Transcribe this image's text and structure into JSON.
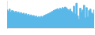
{
  "chart_data": {
    "type": "area",
    "line_style": "step",
    "categories": [
      null,
      null,
      null,
      null,
      null,
      null,
      null,
      null,
      null,
      null,
      null,
      null,
      null,
      null,
      null,
      null,
      null,
      null,
      null,
      null,
      null,
      null,
      null,
      null,
      null,
      null,
      null,
      null,
      null,
      null,
      null,
      null,
      null,
      null,
      null,
      null,
      null,
      null,
      null,
      null,
      null,
      null,
      null,
      null,
      null,
      null,
      null,
      null,
      null,
      null,
      null,
      null,
      null,
      null,
      null,
      null,
      null,
      null,
      null,
      null,
      null,
      null,
      null,
      null,
      null,
      null,
      null,
      null,
      null,
      null
    ],
    "values": [
      62,
      58,
      65,
      55,
      60,
      58,
      54,
      57,
      52,
      55,
      50,
      53,
      48,
      51,
      46,
      49,
      44,
      47,
      42,
      45,
      40,
      43,
      38,
      41,
      36,
      39,
      37,
      40,
      38,
      42,
      44,
      46,
      48,
      50,
      52,
      55,
      57,
      60,
      62,
      64,
      66,
      63,
      68,
      65,
      70,
      67,
      72,
      69,
      64,
      60,
      65,
      57,
      53,
      75,
      48,
      85,
      42,
      30,
      68,
      55,
      62,
      78,
      35,
      70,
      38,
      60,
      65,
      52,
      48,
      62
    ],
    "color": "#5ab8e8",
    "ylim": [
      0,
      93.5
    ],
    "grid": false,
    "tick_labels": false
  }
}
